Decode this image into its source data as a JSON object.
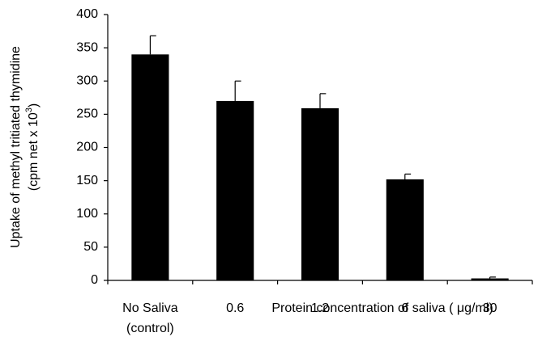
{
  "chart_data": {
    "type": "bar",
    "ylabel": "Uptake of methyl tritiated thymidine",
    "ylabel2": "(cpm net x 10",
    "ylabel2_sup": "3",
    "ylabel2_end": ")",
    "categories": [
      "No Saliva",
      "0.6",
      "1.2",
      "6",
      "30"
    ],
    "category_note": "(control)",
    "xlabel": "Protein concentration of saliva ( μg/ml)",
    "values": [
      340,
      270,
      259,
      152,
      3
    ],
    "errors": [
      28,
      30,
      22,
      8,
      2
    ],
    "color": "#000000",
    "ylim": [
      0,
      400
    ],
    "yticks": [
      0,
      50,
      100,
      150,
      200,
      250,
      300,
      350,
      400
    ],
    "grid": false
  }
}
